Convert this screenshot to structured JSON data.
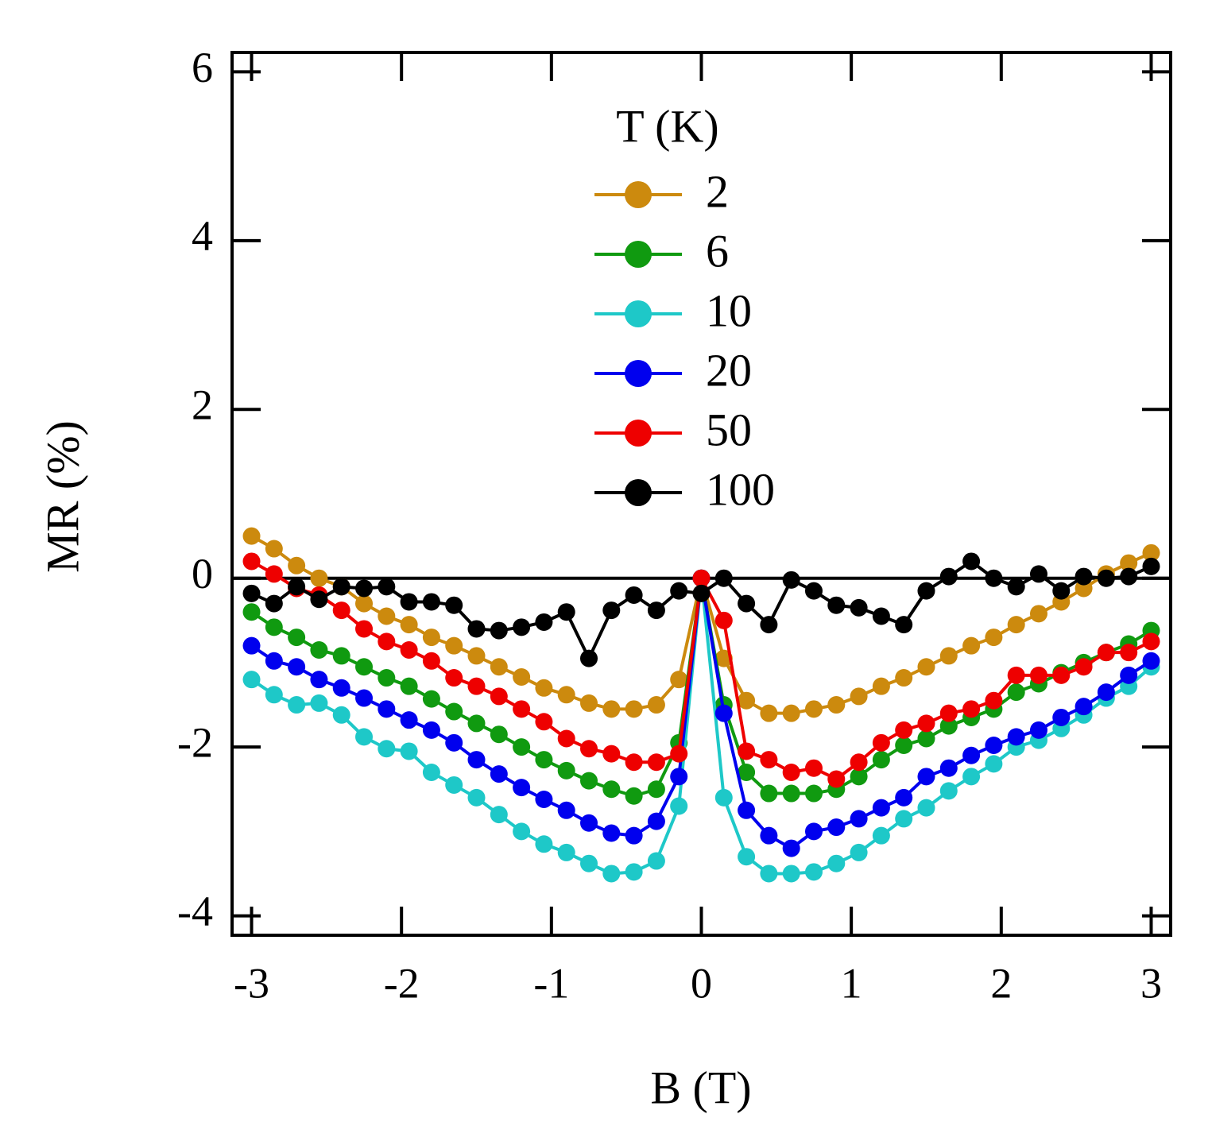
{
  "chart_data": {
    "type": "line",
    "xlabel": "B (T)",
    "ylabel": "MR (%)",
    "legend_title": "T (K)",
    "legend_position": "upper center",
    "xlim": [
      -3.13,
      3.13
    ],
    "ylim": [
      -4.23,
      6.23
    ],
    "xticks": [
      -3,
      -2,
      -1,
      0,
      1,
      2,
      3
    ],
    "yticks": [
      -4,
      -2,
      0,
      2,
      4,
      6
    ],
    "zeroline": true,
    "x": [
      -3,
      -2.85,
      -2.7,
      -2.55,
      -2.4,
      -2.25,
      -2.1,
      -1.95,
      -1.8,
      -1.65,
      -1.5,
      -1.35,
      -1.2,
      -1.05,
      -0.9,
      -0.75,
      -0.6,
      -0.45,
      -0.3,
      -0.15,
      0,
      0.15,
      0.3,
      0.45,
      0.6,
      0.75,
      0.9,
      1.05,
      1.2,
      1.35,
      1.5,
      1.65,
      1.8,
      1.95,
      2.1,
      2.25,
      2.4,
      2.55,
      2.7,
      2.85,
      3
    ],
    "series": [
      {
        "name": "2",
        "color": "#cc8a0e",
        "values": [
          0.5,
          0.35,
          0.15,
          0.0,
          -0.1,
          -0.3,
          -0.45,
          -0.55,
          -0.7,
          -0.8,
          -0.92,
          -1.05,
          -1.17,
          -1.3,
          -1.38,
          -1.48,
          -1.55,
          -1.55,
          -1.5,
          -1.2,
          0,
          -0.95,
          -1.45,
          -1.6,
          -1.6,
          -1.55,
          -1.5,
          -1.4,
          -1.28,
          -1.18,
          -1.05,
          -0.92,
          -0.8,
          -0.7,
          -0.55,
          -0.42,
          -0.28,
          -0.12,
          0.05,
          0.18,
          0.3
        ]
      },
      {
        "name": "6",
        "color": "#109a10",
        "values": [
          -0.4,
          -0.58,
          -0.7,
          -0.85,
          -0.92,
          -1.05,
          -1.18,
          -1.28,
          -1.43,
          -1.58,
          -1.72,
          -1.85,
          -2.0,
          -2.15,
          -2.28,
          -2.4,
          -2.5,
          -2.58,
          -2.5,
          -1.95,
          0,
          -1.5,
          -2.3,
          -2.55,
          -2.55,
          -2.55,
          -2.5,
          -2.35,
          -2.15,
          -1.98,
          -1.9,
          -1.75,
          -1.65,
          -1.55,
          -1.35,
          -1.25,
          -1.12,
          -1.0,
          -0.88,
          -0.78,
          -0.62
        ]
      },
      {
        "name": "10",
        "color": "#1ec8c8",
        "values": [
          -1.2,
          -1.38,
          -1.5,
          -1.48,
          -1.62,
          -1.88,
          -2.02,
          -2.05,
          -2.3,
          -2.45,
          -2.6,
          -2.8,
          -3.0,
          -3.15,
          -3.25,
          -3.38,
          -3.5,
          -3.48,
          -3.35,
          -2.7,
          0,
          -2.6,
          -3.3,
          -3.5,
          -3.5,
          -3.48,
          -3.38,
          -3.25,
          -3.05,
          -2.85,
          -2.72,
          -2.52,
          -2.35,
          -2.2,
          -2.0,
          -1.92,
          -1.78,
          -1.62,
          -1.42,
          -1.28,
          -1.05
        ]
      },
      {
        "name": "20",
        "color": "#0000ee",
        "values": [
          -0.8,
          -0.98,
          -1.05,
          -1.2,
          -1.3,
          -1.42,
          -1.55,
          -1.68,
          -1.8,
          -1.95,
          -2.15,
          -2.32,
          -2.48,
          -2.62,
          -2.75,
          -2.9,
          -3.02,
          -3.05,
          -2.88,
          -2.35,
          0,
          -1.6,
          -2.75,
          -3.05,
          -3.2,
          -3.0,
          -2.95,
          -2.85,
          -2.72,
          -2.6,
          -2.35,
          -2.25,
          -2.1,
          -1.98,
          -1.88,
          -1.8,
          -1.65,
          -1.52,
          -1.35,
          -1.15,
          -0.98
        ]
      },
      {
        "name": "50",
        "color": "#ee0000",
        "values": [
          0.2,
          0.05,
          -0.12,
          -0.2,
          -0.38,
          -0.6,
          -0.75,
          -0.85,
          -0.98,
          -1.18,
          -1.28,
          -1.4,
          -1.55,
          -1.7,
          -1.9,
          -2.02,
          -2.08,
          -2.18,
          -2.18,
          -2.08,
          0,
          -0.5,
          -2.05,
          -2.15,
          -2.3,
          -2.25,
          -2.38,
          -2.18,
          -1.95,
          -1.8,
          -1.72,
          -1.6,
          -1.55,
          -1.45,
          -1.15,
          -1.15,
          -1.15,
          -1.05,
          -0.88,
          -0.88,
          -0.75
        ]
      },
      {
        "name": "100",
        "color": "#000000",
        "values": [
          -0.18,
          -0.3,
          -0.1,
          -0.25,
          -0.1,
          -0.12,
          -0.1,
          -0.28,
          -0.28,
          -0.32,
          -0.6,
          -0.62,
          -0.58,
          -0.52,
          -0.4,
          -0.95,
          -0.38,
          -0.2,
          -0.38,
          -0.15,
          -0.18,
          0.0,
          -0.3,
          -0.55,
          -0.02,
          -0.15,
          -0.32,
          -0.35,
          -0.45,
          -0.55,
          -0.15,
          0.02,
          0.2,
          0.0,
          -0.1,
          0.05,
          -0.15,
          0.02,
          0.0,
          0.02,
          0.14
        ]
      }
    ]
  }
}
